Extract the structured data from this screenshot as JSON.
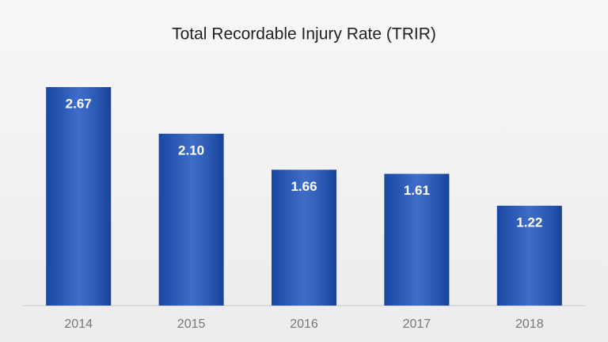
{
  "chart_data": {
    "type": "bar",
    "title": "Total Recordable Injury Rate (TRIR)",
    "categories": [
      "2014",
      "2015",
      "2016",
      "2017",
      "2018"
    ],
    "values": [
      2.67,
      2.1,
      1.66,
      1.61,
      1.22
    ],
    "value_labels": [
      "2.67",
      "2.10",
      "1.66",
      "1.61",
      "1.22"
    ],
    "color": "#1c54bf"
  }
}
